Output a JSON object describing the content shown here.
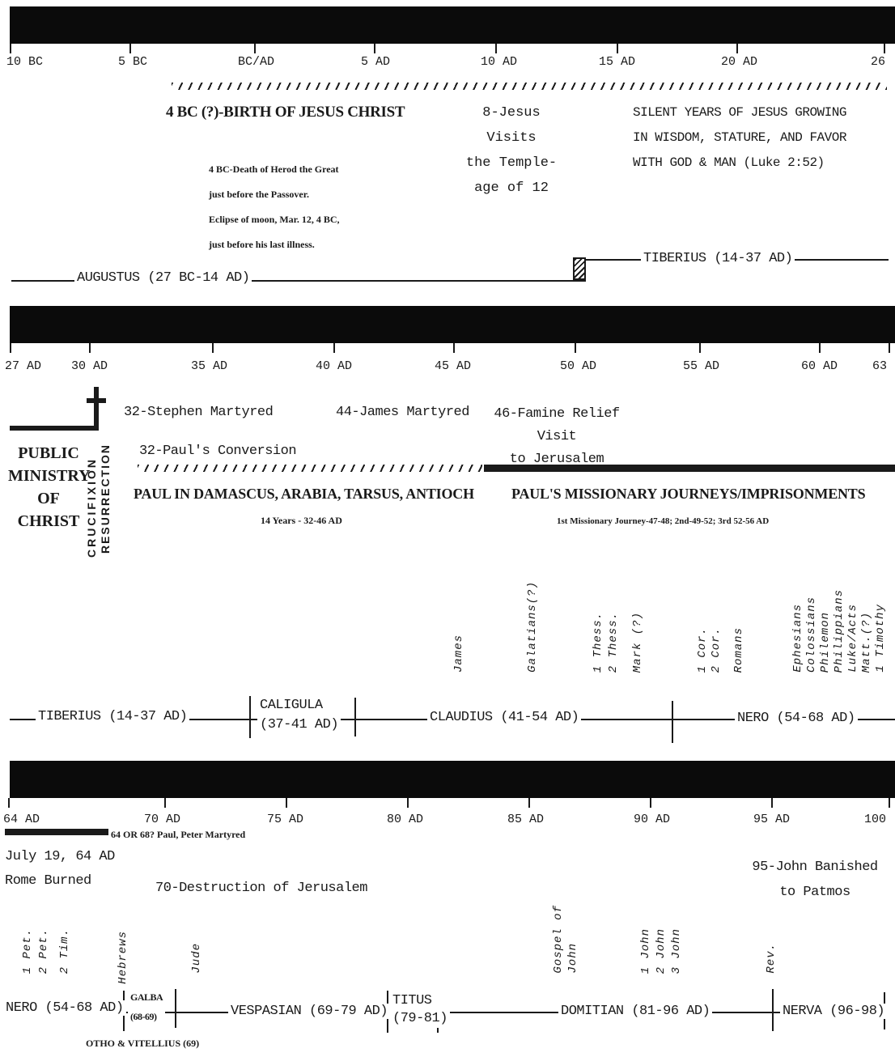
{
  "row1": {
    "ticks": [
      "10 BC",
      "5 BC",
      "BC/AD",
      "5 AD",
      "10 AD",
      "15 AD",
      "20 AD",
      "26"
    ],
    "birth": "4 BC (?)-BIRTH OF JESUS CHRIST",
    "temple_visit": "8-Jesus Visits\nthe Temple-\nage of 12",
    "silent_years": "SILENT YEARS OF JESUS GROWING\nIN WISDOM, STATURE, AND FAVOR\nWITH GOD & MAN (Luke 2:52)",
    "herod_note": "4 BC-Death of Herod the Great\njust before the Passover.\nEclipse of moon, Mar. 12, 4 BC,\njust before his last illness.",
    "augustus": "AUGUSTUS (27 BC-14 AD)",
    "tiberius": "TIBERIUS (14-37 AD)"
  },
  "row2": {
    "ticks": [
      "27 AD",
      "30 AD",
      "35 AD",
      "40 AD",
      "45 AD",
      "50 AD",
      "55 AD",
      "60 AD",
      "63"
    ],
    "stephen": "32-Stephen Martyred",
    "james_martyred": "44-James Martyred",
    "famine": "46-Famine Relief Visit\nto Jerusalem",
    "conversion": "32-Paul's Conversion",
    "public_ministry": "PUBLIC\nMINISTRY\nOF\nCHRIST",
    "crucifixion": "CRUCIFIXION",
    "resurrection": "RESURRECTION",
    "paul_damascus": "PAUL IN DAMASCUS, ARABIA, TARSUS, ANTIOCH",
    "fourteen_years": "14 Years - 32-46 AD",
    "journeys": "PAUL'S MISSIONARY JOURNEYS/IMPRISONMENTS",
    "journeys_note": "1st Missionary Journey-47-48; 2nd-49-52; 3rd 52-56 AD",
    "books": {
      "james": "James",
      "galatians": "Galatians(?)",
      "thess1": "1 Thess.",
      "thess2": "2 Thess.",
      "mark": "Mark (?)",
      "cor1": "1 Cor.",
      "cor2": "2 Cor.",
      "romans": "Romans",
      "ephesians": "Ephesians",
      "colossians": "Colossians",
      "philemon": "Philemon",
      "philippians": "Philippians",
      "luke_acts": "Luke/Acts",
      "matt": "Matt.(?)",
      "timothy1": "1 Timothy"
    },
    "tiberius": "TIBERIUS (14-37 AD)",
    "caligula": "CALIGULA\n(37-41 AD)",
    "claudius": "CLAUDIUS (41-54 AD)",
    "nero": "NERO (54-68 AD)"
  },
  "row3": {
    "ticks": [
      "64 AD",
      "70 AD",
      "75 AD",
      "80 AD",
      "85 AD",
      "90 AD",
      "95 AD",
      "100"
    ],
    "paul_peter": "64 OR 68? Paul, Peter Martyred",
    "rome_burned": "July 19, 64 AD\nRome Burned",
    "jerusalem": "70-Destruction of Jerusalem",
    "john_banished": "95-John Banished\nto Patmos",
    "books": {
      "pet1": "1 Pet.",
      "pet2": "2 Pet.",
      "tim2": "2 Tim.",
      "hebrews": "Hebrews",
      "jude": "Jude",
      "gospel": "Gospel of",
      "john": "John",
      "john1": "1 John",
      "john2": "2 John",
      "john3": "3 John",
      "rev": "Rev."
    },
    "nero": "NERO (54-68 AD)",
    "galba": "GALBA\n(68-69)",
    "vespasian": "VESPASIAN (69-79 AD)",
    "titus": "TITUS\n(79-81)",
    "domitian": "DOMITIAN (81-96 AD)",
    "nerva": "NERVA (96-98)",
    "otho": "OTHO & VITELLIUS (69)"
  }
}
